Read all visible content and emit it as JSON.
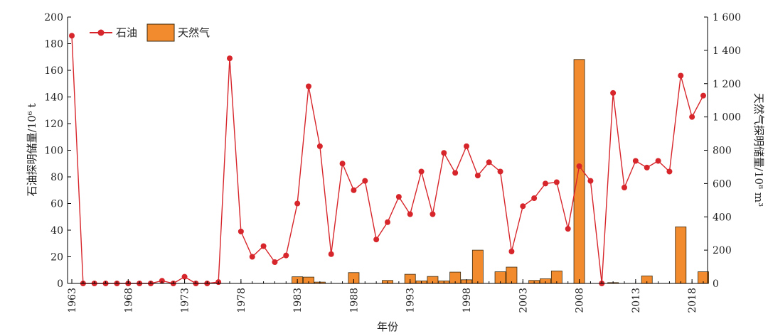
{
  "chart_data": {
    "type": "bar+line",
    "xlabel": "年份",
    "ylabel_left": "石油探明储量/10⁶ t",
    "ylabel_right": "天然气探明储量/10⁸ m³",
    "ylim_left": [
      0,
      200
    ],
    "ylim_right": [
      0,
      1600
    ],
    "yticks_left": [
      "0",
      "20",
      "40",
      "60",
      "80",
      "100",
      "120",
      "140",
      "160",
      "180",
      "200"
    ],
    "yticks_right": [
      "0",
      "200",
      "400",
      "600",
      "800",
      "1 000",
      "1 200",
      "1 400",
      "1 600"
    ],
    "xlim": [
      1963,
      2019
    ],
    "xticks": [
      "1963",
      "1968",
      "1973",
      "1978",
      "1983",
      "1988",
      "1993",
      "1998",
      "2003",
      "2008",
      "2013",
      "2018"
    ],
    "legend": {
      "placement": "top-left"
    },
    "colors": {
      "oil": "#d7262b",
      "gas": "#f28a2e",
      "gas_edge": "#3a2a10"
    },
    "series": [
      {
        "name": "石油",
        "axis": "left",
        "kind": "line",
        "points": [
          [
            1963,
            186
          ],
          [
            1964,
            0
          ],
          [
            1965,
            0
          ],
          [
            1966,
            0
          ],
          [
            1967,
            0
          ],
          [
            1968,
            0
          ],
          [
            1969,
            0
          ],
          [
            1970,
            0
          ],
          [
            1971,
            2
          ],
          [
            1972,
            0
          ],
          [
            1973,
            5
          ],
          [
            1974,
            0
          ],
          [
            1975,
            0
          ],
          [
            1976,
            1
          ],
          [
            1977,
            169
          ],
          [
            1978,
            39
          ],
          [
            1979,
            20
          ],
          [
            1980,
            28
          ],
          [
            1981,
            16
          ],
          [
            1982,
            21
          ],
          [
            1983,
            60
          ],
          [
            1984,
            148
          ],
          [
            1985,
            103
          ],
          [
            1986,
            22
          ],
          [
            1987,
            90
          ],
          [
            1988,
            70
          ],
          [
            1989,
            77
          ],
          [
            1990,
            33
          ],
          [
            1991,
            46
          ],
          [
            1992,
            65
          ],
          [
            1993,
            52
          ],
          [
            1994,
            84
          ],
          [
            1995,
            52
          ],
          [
            1996,
            98
          ],
          [
            1997,
            83
          ],
          [
            1998,
            103
          ],
          [
            1999,
            81
          ],
          [
            2000,
            91
          ],
          [
            2001,
            84
          ],
          [
            2002,
            24
          ],
          [
            2003,
            58
          ],
          [
            2004,
            64
          ],
          [
            2005,
            75
          ],
          [
            2006,
            76
          ],
          [
            2007,
            41
          ],
          [
            2008,
            88
          ],
          [
            2009,
            77
          ],
          [
            2010,
            0
          ],
          [
            2011,
            143
          ],
          [
            2012,
            72
          ],
          [
            2013,
            92
          ],
          [
            2014,
            87
          ],
          [
            2015,
            92
          ],
          [
            2016,
            84
          ],
          [
            2017,
            156
          ],
          [
            2018,
            125
          ],
          [
            2019,
            141
          ]
        ]
      },
      {
        "name": "天然气",
        "axis": "right",
        "kind": "bar",
        "points": [
          [
            1983,
            40
          ],
          [
            1984,
            38
          ],
          [
            1985,
            8
          ],
          [
            1988,
            65
          ],
          [
            1991,
            18
          ],
          [
            1993,
            55
          ],
          [
            1994,
            15
          ],
          [
            1995,
            42
          ],
          [
            1996,
            15
          ],
          [
            1997,
            68
          ],
          [
            1998,
            22
          ],
          [
            1999,
            200
          ],
          [
            2001,
            70
          ],
          [
            2002,
            98
          ],
          [
            2004,
            18
          ],
          [
            2005,
            28
          ],
          [
            2006,
            75
          ],
          [
            2008,
            1345
          ],
          [
            2011,
            5
          ],
          [
            2014,
            45
          ],
          [
            2017,
            340
          ],
          [
            2019,
            70
          ]
        ]
      }
    ]
  }
}
